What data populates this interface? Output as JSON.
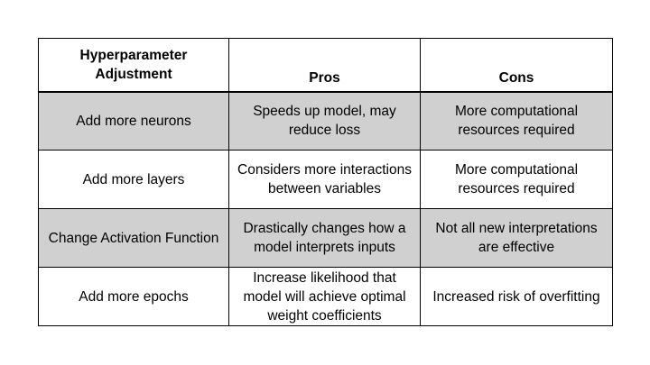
{
  "table": {
    "headers": [
      "Hyperparameter Adjustment",
      "Pros",
      "Cons"
    ],
    "rows": [
      {
        "adjustment": "Add more neurons",
        "pros": "Speeds up model, may reduce loss",
        "cons": "More computational resources required"
      },
      {
        "adjustment": "Add more layers",
        "pros": "Considers more interactions between variables",
        "cons": "More computational resources required"
      },
      {
        "adjustment": "Change Activation Function",
        "pros": "Drastically changes how a model interprets inputs",
        "cons": "Not all new interpretations are effective"
      },
      {
        "adjustment": "Add more epochs",
        "pros": "Increase likelihood that model will achieve optimal weight coefficients",
        "cons": "Increased risk of overfitting"
      }
    ],
    "colors": {
      "shaded_row": "#d0d0d0",
      "plain_row": "#ffffff",
      "border": "#000000"
    }
  }
}
